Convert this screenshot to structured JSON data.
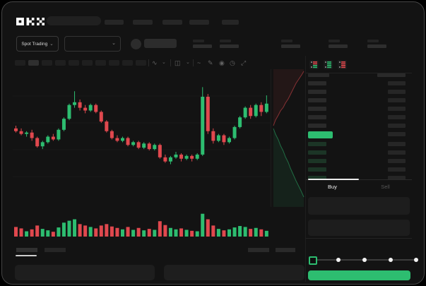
{
  "colors": {
    "green": "#2DBD70",
    "red": "#E0484E",
    "background": "#131313",
    "panel": "#1D1D1D",
    "bar": "#282828"
  },
  "nav": {
    "logo": "OKX"
  },
  "ticker": {
    "market_type_label": "Spot Trading",
    "chevron": "⌄"
  },
  "toolbar": {
    "timeframe_count": 10,
    "icons": {
      "wave": "∿",
      "chevron": "⌄",
      "candle_style": "◫",
      "line_style": "~",
      "draw": "✎",
      "camera": "◉",
      "history": "◷",
      "expand": "⤢"
    }
  },
  "orderbook": {
    "asks_count": 7,
    "bids_count": 5
  },
  "trade_form": {
    "buy_tab": "Buy",
    "sell_tab": "Sell",
    "active_tab": "Buy"
  },
  "chart_data": {
    "type": "candlestick",
    "title": "",
    "xlabel": "",
    "ylabel": "",
    "value_range": [
      0,
      100
    ],
    "grid": true,
    "up_color": "#2DBD70",
    "down_color": "#E0484E",
    "candles": [
      [
        57,
        59,
        54,
        55
      ],
      [
        55,
        57,
        52,
        53
      ],
      [
        53,
        55,
        51,
        54
      ],
      [
        54,
        56,
        48,
        50
      ],
      [
        50,
        51,
        43,
        44
      ],
      [
        44,
        48,
        42,
        47
      ],
      [
        47,
        52,
        46,
        51
      ],
      [
        51,
        53,
        48,
        49
      ],
      [
        49,
        57,
        48,
        56
      ],
      [
        56,
        65,
        55,
        64
      ],
      [
        64,
        75,
        63,
        74
      ],
      [
        74,
        84,
        72,
        76
      ],
      [
        76,
        78,
        70,
        72
      ],
      [
        72,
        74,
        68,
        70
      ],
      [
        70,
        75,
        69,
        74
      ],
      [
        74,
        75,
        68,
        69
      ],
      [
        69,
        70,
        61,
        62
      ],
      [
        62,
        63,
        54,
        55
      ],
      [
        55,
        56,
        49,
        50
      ],
      [
        50,
        52,
        47,
        48
      ],
      [
        48,
        51,
        47,
        50
      ],
      [
        50,
        51,
        44,
        45
      ],
      [
        45,
        48,
        44,
        47
      ],
      [
        47,
        48,
        42,
        43
      ],
      [
        43,
        47,
        42,
        46
      ],
      [
        46,
        47,
        41,
        42
      ],
      [
        42,
        46,
        41,
        45
      ],
      [
        45,
        46,
        35,
        36
      ],
      [
        36,
        38,
        32,
        33
      ],
      [
        33,
        37,
        31,
        36
      ],
      [
        36,
        40,
        35,
        38
      ],
      [
        38,
        39,
        33,
        35
      ],
      [
        35,
        38,
        34,
        37
      ],
      [
        37,
        38,
        33,
        35
      ],
      [
        35,
        39,
        34,
        38
      ],
      [
        38,
        87,
        37,
        80
      ],
      [
        80,
        82,
        53,
        55
      ],
      [
        55,
        57,
        46,
        48
      ],
      [
        48,
        53,
        47,
        52
      ],
      [
        52,
        53,
        45,
        47
      ],
      [
        47,
        51,
        46,
        50
      ],
      [
        50,
        59,
        49,
        58
      ],
      [
        58,
        66,
        57,
        65
      ],
      [
        65,
        73,
        64,
        72
      ],
      [
        72,
        74,
        64,
        66
      ],
      [
        66,
        75,
        65,
        74
      ],
      [
        74,
        76,
        66,
        69
      ],
      [
        69,
        81,
        68,
        75
      ]
    ],
    "volumes": [
      40,
      34,
      22,
      30,
      46,
      32,
      26,
      20,
      38,
      58,
      66,
      72,
      52,
      46,
      40,
      34,
      46,
      52,
      42,
      36,
      30,
      40,
      28,
      36,
      26,
      32,
      28,
      64,
      48,
      36,
      30,
      34,
      28,
      24,
      22,
      95,
      72,
      46,
      32,
      26,
      30,
      38,
      44,
      40,
      32,
      36,
      30,
      24
    ],
    "depth": {
      "asks": [
        [
          3,
          80
        ],
        [
          6,
          72
        ],
        [
          10,
          65
        ],
        [
          13,
          59
        ],
        [
          17,
          54
        ],
        [
          20,
          48
        ],
        [
          24,
          42
        ],
        [
          27,
          36
        ],
        [
          31,
          28
        ],
        [
          35,
          20
        ],
        [
          39,
          14
        ],
        [
          43,
          8
        ],
        [
          46,
          3
        ]
      ],
      "bids": [
        [
          3,
          84
        ],
        [
          6,
          92
        ],
        [
          10,
          100
        ],
        [
          13,
          108
        ],
        [
          17,
          116
        ],
        [
          20,
          124
        ],
        [
          24,
          132
        ],
        [
          27,
          140
        ],
        [
          31,
          149
        ],
        [
          35,
          158
        ],
        [
          39,
          166
        ],
        [
          42,
          172
        ],
        [
          46,
          181
        ]
      ]
    }
  }
}
